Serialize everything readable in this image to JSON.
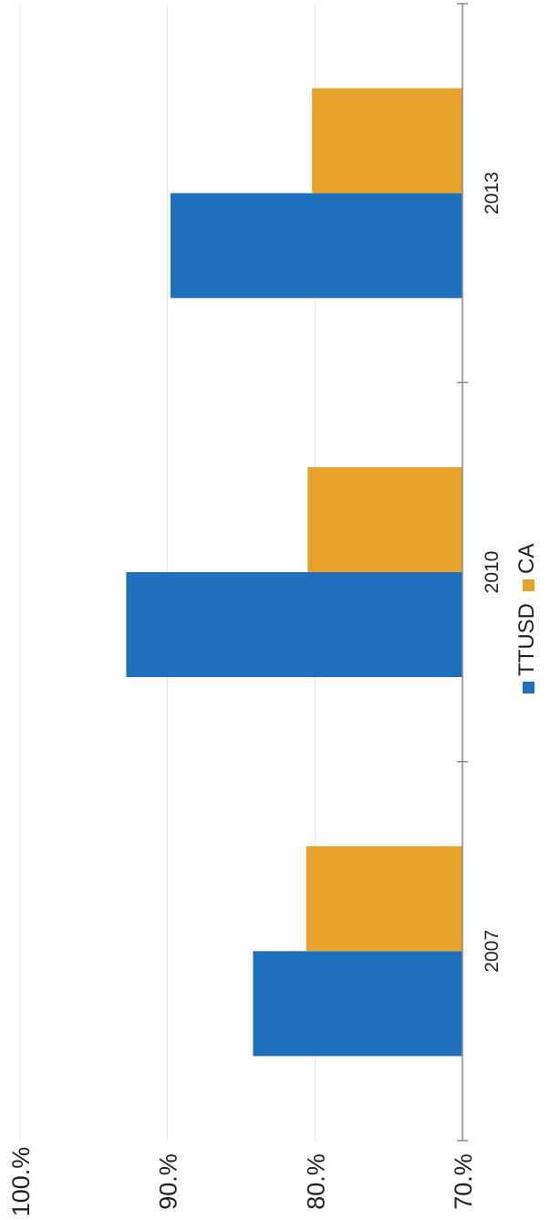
{
  "chart_data": {
    "type": "bar",
    "orientation": "rotated-90",
    "categories": [
      "2007",
      "2010",
      "2013"
    ],
    "series": [
      {
        "name": "TTUSD",
        "values": [
          84.2,
          92.8,
          89.8
        ]
      },
      {
        "name": "CA",
        "values": [
          80.6,
          80.5,
          80.2
        ]
      }
    ],
    "y_ticks": [
      70,
      80,
      90,
      100
    ],
    "y_tick_labels": [
      "70.%",
      "80.%",
      "90.%",
      "100.%"
    ],
    "ylim": [
      70,
      100
    ],
    "grid": true,
    "legend": {
      "position": "bottom"
    },
    "colors": {
      "TTUSD": "#1f6fbf",
      "CA": "#e8a32a",
      "grid": "#e6e6e6",
      "axis": "#888888"
    }
  }
}
